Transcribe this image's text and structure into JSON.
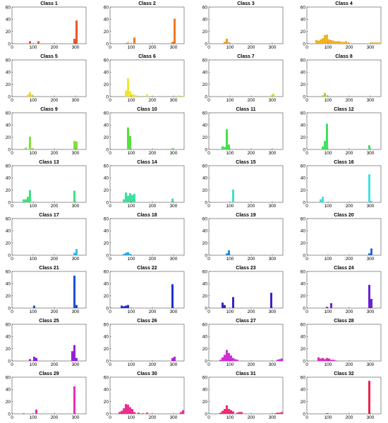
{
  "figure": {
    "xlim": [
      0,
      350
    ],
    "ylim": [
      0,
      60
    ],
    "xticks": [
      0,
      100,
      200,
      300
    ],
    "yticks": [
      0,
      20,
      40,
      60
    ],
    "bin_width": 10,
    "grid": false
  },
  "chart_data": [
    {
      "type": "bar",
      "title": "Class 1",
      "color": "#e8562a",
      "x": [
        85,
        125,
        295,
        305
      ],
      "values": [
        4,
        4,
        8,
        38
      ]
    },
    {
      "type": "bar",
      "title": "Class 2",
      "color": "#ec7a25",
      "x": [
        75,
        85,
        115,
        295,
        305
      ],
      "values": [
        1,
        2,
        10,
        3,
        41
      ]
    },
    {
      "type": "bar",
      "title": "Class 3",
      "color": "#f0991f",
      "x": [
        75,
        85,
        95
      ],
      "values": [
        3,
        8,
        2
      ]
    },
    {
      "type": "bar",
      "title": "Class 4",
      "color": "#efb326",
      "x": [
        45,
        55,
        65,
        75,
        85,
        95,
        105,
        115,
        125,
        135,
        145,
        155,
        165,
        175,
        185,
        195,
        305,
        315,
        325,
        335,
        345
      ],
      "values": [
        6,
        5,
        7,
        9,
        14,
        15,
        7,
        6,
        5,
        4,
        4,
        4,
        3,
        3,
        4,
        2,
        2,
        2,
        2,
        2,
        2
      ]
    },
    {
      "type": "bar",
      "title": "Class 5",
      "color": "#f3d226",
      "x": [
        75,
        85,
        95
      ],
      "values": [
        3,
        7,
        3
      ]
    },
    {
      "type": "bar",
      "title": "Class 6",
      "color": "#f0e630",
      "x": [
        75,
        85,
        95,
        105,
        115,
        125,
        175,
        325,
        345
      ],
      "values": [
        10,
        30,
        9,
        4,
        3,
        2,
        4,
        2,
        1
      ]
    },
    {
      "type": "bar",
      "title": "Class 7",
      "color": "#d4e22a",
      "x": [
        295,
        305
      ],
      "values": [
        2,
        5
      ]
    },
    {
      "type": "bar",
      "title": "Class 8",
      "color": "#9ed93a",
      "x": [
        75,
        85,
        95
      ],
      "values": [
        2,
        6,
        2
      ]
    },
    {
      "type": "bar",
      "title": "Class 9",
      "color": "#7ee03c",
      "x": [
        65,
        85,
        95,
        295,
        305
      ],
      "values": [
        3,
        21,
        2,
        14,
        13
      ]
    },
    {
      "type": "bar",
      "title": "Class 10",
      "color": "#56e040",
      "x": [
        85,
        95,
        295
      ],
      "values": [
        36,
        22,
        2
      ]
    },
    {
      "type": "bar",
      "title": "Class 11",
      "color": "#44e04c",
      "x": [
        65,
        75,
        85,
        95,
        295
      ],
      "values": [
        5,
        4,
        33,
        8,
        1
      ]
    },
    {
      "type": "bar",
      "title": "Class 12",
      "color": "#3ee25e",
      "x": [
        75,
        85,
        95,
        295
      ],
      "values": [
        5,
        14,
        42,
        7
      ]
    },
    {
      "type": "bar",
      "title": "Class 13",
      "color": "#3ee27c",
      "x": [
        55,
        65,
        75,
        85,
        295
      ],
      "values": [
        5,
        5,
        9,
        20,
        19
      ]
    },
    {
      "type": "bar",
      "title": "Class 14",
      "color": "#3ee0a0",
      "x": [
        65,
        75,
        85,
        95,
        105,
        115,
        295
      ],
      "values": [
        5,
        16,
        11,
        15,
        12,
        14,
        6
      ]
    },
    {
      "type": "bar",
      "title": "Class 15",
      "color": "#3ee2cc",
      "x": [
        115
      ],
      "values": [
        21
      ]
    },
    {
      "type": "bar",
      "title": "Class 16",
      "color": "#3ee2e0",
      "x": [
        65,
        75,
        295,
        305
      ],
      "values": [
        5,
        9,
        46,
        2
      ]
    },
    {
      "type": "bar",
      "title": "Class 17",
      "color": "#34bfe0",
      "x": [
        295,
        305
      ],
      "values": [
        4,
        10
      ]
    },
    {
      "type": "bar",
      "title": "Class 18",
      "color": "#2aa8e0",
      "x": [
        65,
        75,
        85,
        95
      ],
      "values": [
        2,
        4,
        5,
        2
      ]
    },
    {
      "type": "bar",
      "title": "Class 19",
      "color": "#2a88d8",
      "x": [
        85,
        95
      ],
      "values": [
        3,
        8
      ]
    },
    {
      "type": "bar",
      "title": "Class 20",
      "color": "#2a6ad8",
      "x": [
        295,
        305
      ],
      "values": [
        3,
        11
      ]
    },
    {
      "type": "bar",
      "title": "Class 21",
      "color": "#1f4ed8",
      "x": [
        105,
        295,
        305
      ],
      "values": [
        4,
        53,
        5
      ]
    },
    {
      "type": "bar",
      "title": "Class 22",
      "color": "#1f30d0",
      "x": [
        55,
        65,
        75,
        85,
        295
      ],
      "values": [
        4,
        3,
        4,
        5,
        39
      ]
    },
    {
      "type": "bar",
      "title": "Class 23",
      "color": "#3c22c8",
      "x": [
        65,
        75,
        115,
        295
      ],
      "values": [
        9,
        5,
        18,
        25
      ]
    },
    {
      "type": "bar",
      "title": "Class 24",
      "color": "#6a22cf",
      "x": [
        95,
        115,
        295,
        305
      ],
      "values": [
        2,
        8,
        38,
        15
      ]
    },
    {
      "type": "bar",
      "title": "Class 25",
      "color": "#9222d8",
      "x": [
        85,
        105,
        115,
        285,
        295,
        305
      ],
      "values": [
        3,
        7,
        5,
        16,
        26,
        5
      ]
    },
    {
      "type": "bar",
      "title": "Class 26",
      "color": "#b025dd",
      "x": [
        295,
        305
      ],
      "values": [
        5,
        7
      ]
    },
    {
      "type": "bar",
      "title": "Class 27",
      "color": "#d02cd8",
      "x": [
        55,
        65,
        75,
        85,
        95,
        105,
        115,
        125,
        135,
        325,
        335,
        345
      ],
      "values": [
        2,
        6,
        10,
        18,
        13,
        9,
        5,
        3,
        2,
        2,
        3,
        4
      ]
    },
    {
      "type": "bar",
      "title": "Class 28",
      "color": "#e22cc2",
      "x": [
        55,
        65,
        75,
        85,
        95,
        105,
        115,
        125,
        135
      ],
      "values": [
        6,
        4,
        5,
        3,
        5,
        4,
        2,
        2,
        1
      ]
    },
    {
      "type": "bar",
      "title": "Class 29",
      "color": "#ea2fb2",
      "x": [
        55,
        115,
        295
      ],
      "values": [
        1,
        7,
        45
      ]
    },
    {
      "type": "bar",
      "title": "Class 30",
      "color": "#ee2c94",
      "x": [
        45,
        55,
        65,
        75,
        85,
        95,
        105,
        115,
        135,
        155,
        175,
        335,
        345
      ],
      "values": [
        3,
        5,
        9,
        16,
        15,
        11,
        8,
        3,
        2,
        1,
        2,
        3,
        6
      ]
    },
    {
      "type": "bar",
      "title": "Class 31",
      "color": "#ef2c76",
      "x": [
        55,
        65,
        75,
        85,
        95,
        105,
        115,
        135,
        145,
        155,
        315,
        325,
        335,
        345
      ],
      "values": [
        2,
        5,
        8,
        14,
        8,
        6,
        4,
        2,
        3,
        3,
        1,
        2,
        2,
        3
      ]
    },
    {
      "type": "bar",
      "title": "Class 32",
      "color": "#e8244a",
      "x": [
        95,
        295
      ],
      "values": [
        1,
        54
      ]
    }
  ]
}
